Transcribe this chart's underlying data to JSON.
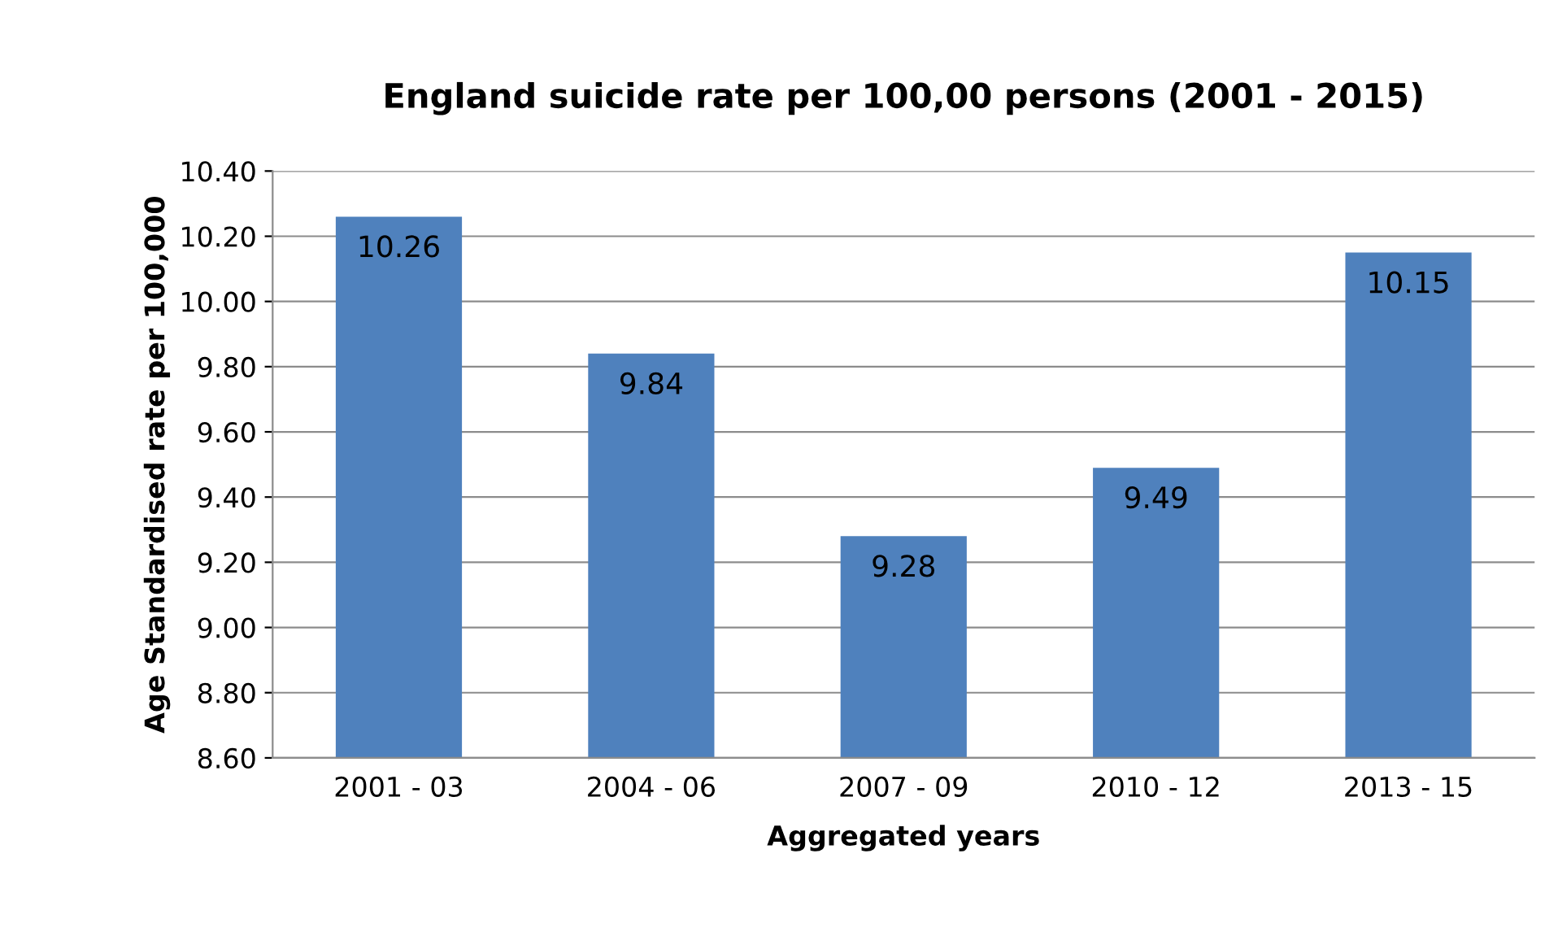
{
  "chart_data": {
    "type": "bar",
    "title": "England suicide rate per 100,00 persons (2001 - 2015)",
    "xlabel": "Aggregated years",
    "ylabel": "Age Standardised rate per 100,000",
    "categories": [
      "2001 - 03",
      "2004 - 06",
      "2007 - 09",
      "2010 - 12",
      "2013 - 15"
    ],
    "values": [
      10.26,
      9.84,
      9.28,
      9.49,
      10.15
    ],
    "color": "#4f81bd",
    "ylim": [
      8.6,
      10.4
    ],
    "yticks": [
      {
        "value": 8.6,
        "label": "8.60"
      },
      {
        "value": 8.8,
        "label": "8.80"
      },
      {
        "value": 9.0,
        "label": "9.00"
      },
      {
        "value": 9.2,
        "label": "9.20"
      },
      {
        "value": 9.4,
        "label": "9.40"
      },
      {
        "value": 9.6,
        "label": "9.60"
      },
      {
        "value": 9.8,
        "label": "9.80"
      },
      {
        "value": 10.0,
        "label": "10.00"
      },
      {
        "value": 10.2,
        "label": "10.20"
      },
      {
        "value": 10.4,
        "label": "10.40"
      }
    ],
    "grid": "y",
    "data_labels": true,
    "legend": false
  }
}
